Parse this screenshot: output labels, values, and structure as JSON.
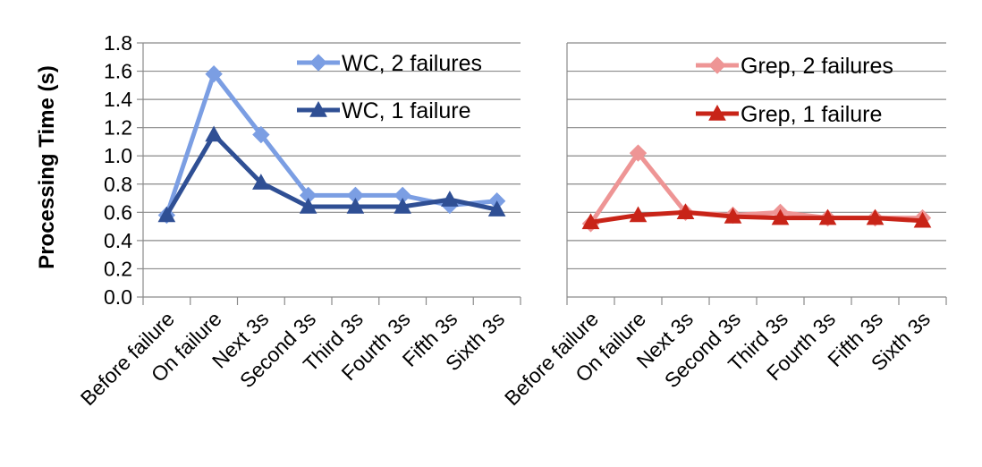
{
  "chart_data": [
    {
      "type": "line",
      "ylabel": "Processing Time (s)",
      "ylim": [
        0,
        1.8
      ],
      "yticks": [
        "0.0",
        "0.2",
        "0.4",
        "0.6",
        "0.8",
        "1.0",
        "1.2",
        "1.4",
        "1.6",
        "1.8"
      ],
      "categories": [
        "Before failure",
        "On failure",
        "Next 3s",
        "Second 3s",
        "Third 3s",
        "Fourth 3s",
        "Fifth 3s",
        "Sixth 3s"
      ],
      "grid": true,
      "legend_position": "top-right",
      "series": [
        {
          "name": "WC, 2 failures",
          "color": "#7b9ee3",
          "marker": "diamond",
          "values": [
            0.58,
            1.58,
            1.15,
            0.72,
            0.72,
            0.72,
            0.65,
            0.68
          ]
        },
        {
          "name": "WC, 1 failure",
          "color": "#2f4f94",
          "marker": "triangle",
          "values": [
            0.58,
            1.15,
            0.81,
            0.64,
            0.64,
            0.64,
            0.69,
            0.62
          ]
        }
      ]
    },
    {
      "type": "line",
      "ylim": [
        0,
        1.8
      ],
      "categories": [
        "Before failure",
        "On failure",
        "Next 3s",
        "Second 3s",
        "Third 3s",
        "Fourth 3s",
        "Fifth 3s",
        "Sixth 3s"
      ],
      "grid": true,
      "legend_position": "top-right",
      "series": [
        {
          "name": "Grep, 2 failures",
          "color": "#ee9595",
          "marker": "diamond",
          "values": [
            0.52,
            1.02,
            0.6,
            0.58,
            0.6,
            0.56,
            0.56,
            0.56
          ]
        },
        {
          "name": "Grep, 1 failure",
          "color": "#c82418",
          "marker": "triangle",
          "values": [
            0.53,
            0.58,
            0.6,
            0.57,
            0.56,
            0.56,
            0.56,
            0.54
          ]
        }
      ]
    }
  ]
}
